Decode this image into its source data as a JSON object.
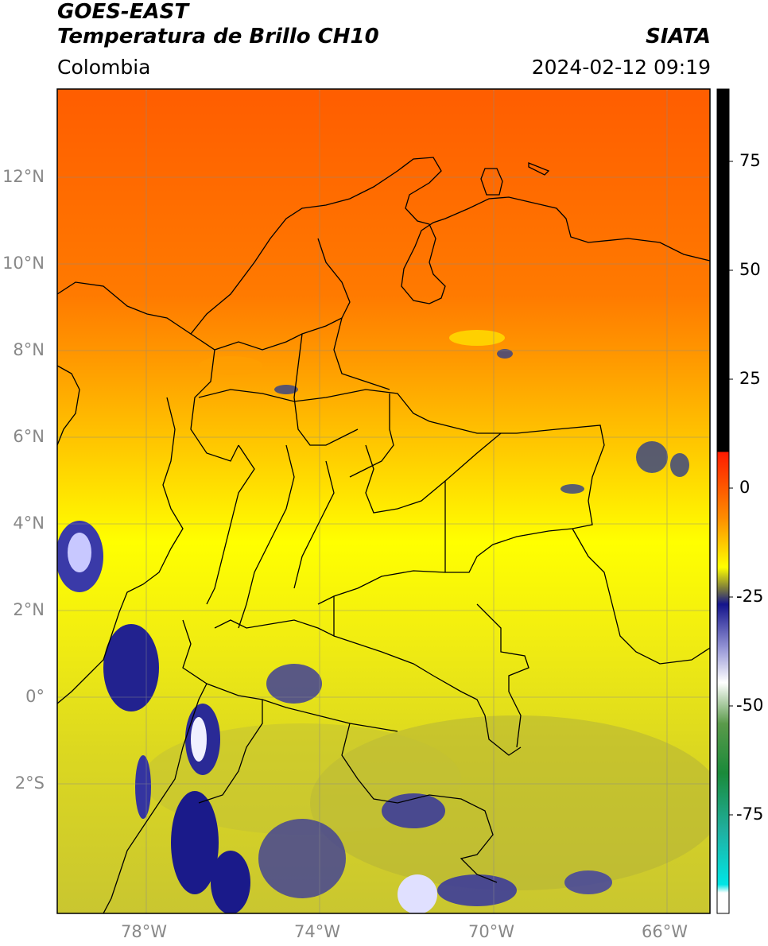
{
  "header": {
    "title_line1": "GOES-EAST",
    "title_line2": "Temperatura de Brillo CH10",
    "agency": "SIATA",
    "region": "Colombia",
    "timestamp": "2024-02-12 09:19"
  },
  "map": {
    "lat_labels": [
      "12°N",
      "10°N",
      "8°N",
      "6°N",
      "4°N",
      "2°N",
      "0°",
      "2°S"
    ],
    "lon_labels": [
      "78°W",
      "74°W",
      "70°W",
      "66°W"
    ]
  },
  "colorbar": {
    "ticks": [
      "75",
      "50",
      "25",
      "0",
      "-25",
      "-50",
      "-75"
    ],
    "colors": {
      "hot": "#000000",
      "warm_red": "#ff1a00",
      "orange": "#ff7700",
      "yellow": "#ffff00",
      "olive": "#999933",
      "navy": "#14148c",
      "white": "#ffffff",
      "green": "#2e8b2e",
      "cyan": "#00e0e0"
    }
  }
}
